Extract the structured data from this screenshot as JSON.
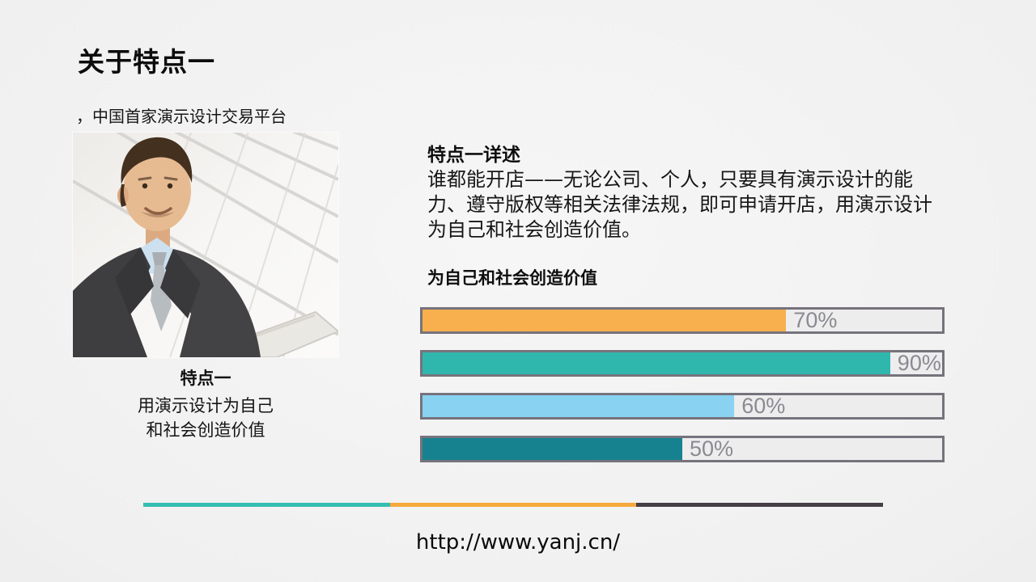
{
  "slide": {
    "title": "关于特点一",
    "subtitle": "，中国首家演示设计交易平台",
    "photo": {
      "description": "businessman-with-laptop-photo"
    },
    "photo_caption": {
      "heading": "特点一",
      "line1": "用演示设计为自己",
      "line2": "和社会创造价值"
    },
    "detail": {
      "heading": "特点一详述",
      "body_lines": [
        "谁都能开店——无论公司、个人，只要具有演示设计的能",
        "力、遵守版权等相关法律法规，即可申请开店，用演示设计",
        "为自己和社会创造价值。"
      ]
    },
    "footer_url": "http://www.yanj.cn/"
  },
  "chart_data": {
    "type": "bar",
    "orientation": "horizontal",
    "title": "为自己和社会创造价值",
    "categories": [
      "bar-1",
      "bar-2",
      "bar-3",
      "bar-4"
    ],
    "values": [
      70,
      90,
      60,
      50
    ],
    "labels": [
      "70%",
      "90%",
      "60%",
      "50%"
    ],
    "bar_colors": [
      "#F8AF4D",
      "#2FB7AE",
      "#8AD2F1",
      "#17828F"
    ],
    "xlim": [
      0,
      100
    ],
    "track_color": "#EDEDEE",
    "border_color": "#76737C",
    "label_color": "#8A8A91",
    "grid": false,
    "legend": false
  },
  "divider": {
    "segment_colors": [
      "#35BDB2",
      "#F5A93D",
      "#453E46"
    ]
  },
  "theme": {
    "accent_teal": "#2FB7AE",
    "accent_orange": "#F8AF4D",
    "accent_dark": "#453E46",
    "background": "#EFEFEF"
  }
}
